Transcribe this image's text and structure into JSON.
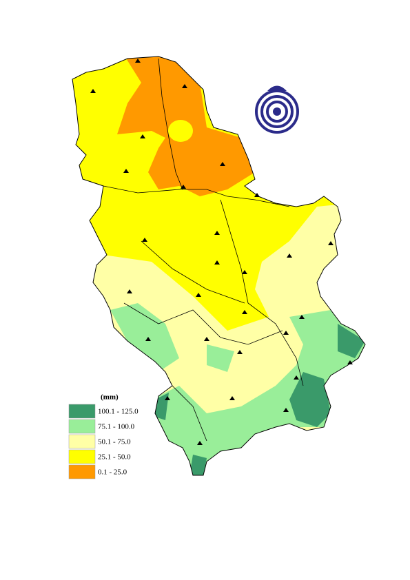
{
  "legend": {
    "title": "(mm)",
    "items": [
      {
        "label": "100.1 - 125.0",
        "color": "#3a9a6a"
      },
      {
        "label": "75.1 - 100.0",
        "color": "#99ee99"
      },
      {
        "label": "50.1 - 75.0",
        "color": "#ffffa6"
      },
      {
        "label": "25.1 - 50.0",
        "color": "#ffff00"
      },
      {
        "label": "0.1 - 25.0",
        "color": "#ff9900"
      }
    ]
  }
}
